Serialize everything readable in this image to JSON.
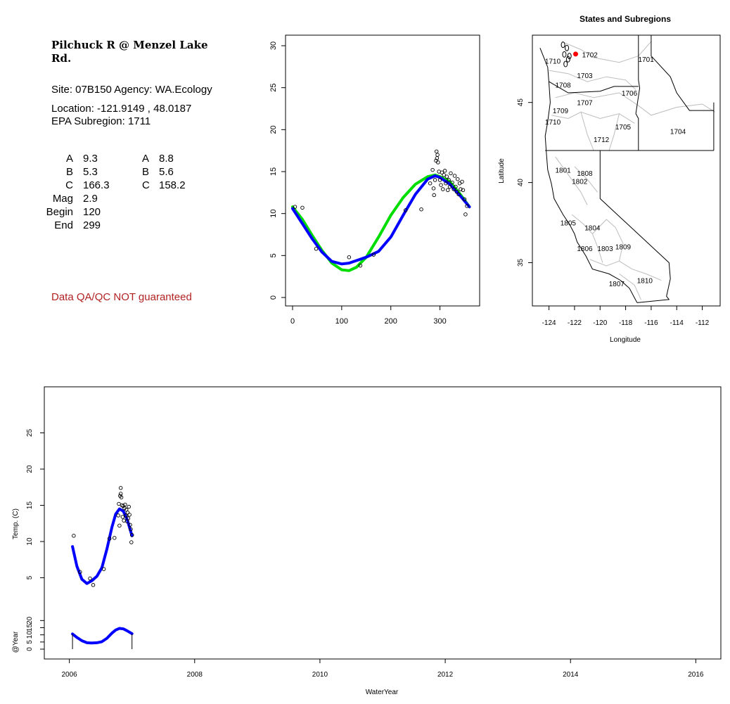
{
  "site": {
    "name": "Pilchuck R @ Menzel Lake Rd.",
    "site_line": "Site: 07B150     Agency: WA.Ecology",
    "location_line": "Location: -121.9149 , 48.0187",
    "subregion_line": "EPA Subregion: 1711",
    "qa_note": "Data QA/QC NOT guaranteed"
  },
  "params": {
    "rows": [
      {
        "label": "A",
        "v1": "9.3",
        "label2": "A",
        "v2": "8.8"
      },
      {
        "label": "B",
        "v1": "5.3",
        "label2": "B",
        "v2": "5.6"
      },
      {
        "label": "C",
        "v1": "166.3",
        "label2": "C",
        "v2": "158.2"
      },
      {
        "label": "Mag",
        "v1": "2.9",
        "label2": "",
        "v2": ""
      },
      {
        "label": "Begin",
        "v1": "120",
        "label2": "",
        "v2": ""
      },
      {
        "label": "End",
        "v1": "299",
        "label2": "",
        "v2": ""
      }
    ]
  },
  "colors": {
    "fit_a": "#0000ff",
    "fit_b": "#00dd00",
    "marker": "#ff0000",
    "qa": "#b22222"
  },
  "chart_data": [
    {
      "type": "scatter",
      "title": "",
      "xlabel": "",
      "ylabel": "",
      "xlim": [
        0,
        365
      ],
      "ylim": [
        0,
        30
      ],
      "xticks": [
        0,
        100,
        200,
        300
      ],
      "yticks": [
        0,
        5,
        10,
        15,
        20,
        25,
        30
      ],
      "points": [
        [
          5,
          10.8
        ],
        [
          20,
          10.7
        ],
        [
          48,
          5.8
        ],
        [
          115,
          4.8
        ],
        [
          138,
          3.8
        ],
        [
          165,
          5.1
        ],
        [
          230,
          10.4
        ],
        [
          262,
          10.5
        ],
        [
          280,
          13.6
        ],
        [
          285,
          15.2
        ],
        [
          287,
          13
        ],
        [
          288,
          12.2
        ],
        [
          290,
          14
        ],
        [
          292,
          16.3
        ],
        [
          293,
          17.4
        ],
        [
          294,
          16.6
        ],
        [
          295,
          17
        ],
        [
          296,
          16.1
        ],
        [
          298,
          15
        ],
        [
          300,
          14
        ],
        [
          302,
          13.4
        ],
        [
          304,
          14.9
        ],
        [
          306,
          12.9
        ],
        [
          308,
          14.6
        ],
        [
          310,
          15.1
        ],
        [
          312,
          13.6
        ],
        [
          314,
          14.4
        ],
        [
          316,
          12.8
        ],
        [
          318,
          14
        ],
        [
          320,
          13.2
        ],
        [
          322,
          14.8
        ],
        [
          325,
          13.7
        ],
        [
          328,
          12.9
        ],
        [
          330,
          14.5
        ],
        [
          332,
          13.2
        ],
        [
          334,
          12.6
        ],
        [
          336,
          14.1
        ],
        [
          338,
          12.3
        ],
        [
          340,
          13.6
        ],
        [
          342,
          12.9
        ],
        [
          345,
          13.8
        ],
        [
          347,
          12.8
        ],
        [
          350,
          11.7
        ],
        [
          352,
          9.9
        ],
        [
          355,
          10.9
        ]
      ],
      "series": [
        {
          "name": "",
          "color": "#00dd00",
          "x": [
            0,
            20,
            40,
            60,
            80,
            100,
            115,
            130,
            150,
            175,
            200,
            225,
            250,
            275,
            290,
            300,
            320,
            340,
            360
          ],
          "y": [
            10.8,
            9.3,
            7.4,
            5.6,
            4.1,
            3.3,
            3.2,
            3.6,
            4.8,
            7.2,
            9.8,
            11.9,
            13.5,
            14.4,
            14.6,
            14.4,
            13.8,
            12.4,
            10.8
          ]
        },
        {
          "name": "",
          "color": "#0000ff",
          "x": [
            0,
            20,
            40,
            60,
            80,
            100,
            115,
            130,
            150,
            175,
            200,
            225,
            250,
            275,
            290,
            300,
            320,
            340,
            360
          ],
          "y": [
            10.6,
            8.8,
            7,
            5.4,
            4.3,
            4,
            4.1,
            4.4,
            4.8,
            5.5,
            7.2,
            9.8,
            12.3,
            14.1,
            14.5,
            14.3,
            13.5,
            12.2,
            10.8
          ]
        }
      ]
    },
    {
      "type": "map",
      "title": "States and Subregions",
      "xlabel": "Longitude",
      "ylabel": "Latitude",
      "xlim": [
        -125.3,
        -110.6
      ],
      "ylim": [
        32.3,
        49.2
      ],
      "xticks": [
        -124,
        -122,
        -120,
        -118,
        -116,
        -114,
        -112
      ],
      "yticks": [
        35,
        40,
        45
      ],
      "regions": [
        {
          "label": "1702",
          "lon": -120.8,
          "lat": 48.0
        },
        {
          "label": "1701",
          "lon": -116.4,
          "lat": 47.7
        },
        {
          "label": "1710",
          "lon": -123.7,
          "lat": 47.6
        },
        {
          "label": "1703",
          "lon": -121.2,
          "lat": 46.7
        },
        {
          "label": "1708",
          "lon": -122.9,
          "lat": 46.1
        },
        {
          "label": "1706",
          "lon": -117.7,
          "lat": 45.6
        },
        {
          "label": "1707",
          "lon": -121.2,
          "lat": 45.0
        },
        {
          "label": "1709",
          "lon": -123.1,
          "lat": 44.5
        },
        {
          "label": "1710",
          "lon": -123.7,
          "lat": 43.8
        },
        {
          "label": "1705",
          "lon": -118.2,
          "lat": 43.5
        },
        {
          "label": "1704",
          "lon": -113.9,
          "lat": 43.2
        },
        {
          "label": "1712",
          "lon": -119.9,
          "lat": 42.7
        },
        {
          "label": "1801",
          "lon": -122.9,
          "lat": 40.8
        },
        {
          "label": "1808",
          "lon": -121.2,
          "lat": 40.6
        },
        {
          "label": "1802",
          "lon": -121.6,
          "lat": 40.1
        },
        {
          "label": "1805",
          "lon": -122.5,
          "lat": 37.5
        },
        {
          "label": "1804",
          "lon": -120.6,
          "lat": 37.2
        },
        {
          "label": "1806",
          "lon": -121.2,
          "lat": 35.9
        },
        {
          "label": "1803",
          "lon": -119.6,
          "lat": 35.9
        },
        {
          "label": "1809",
          "lon": -118.2,
          "lat": 36.0
        },
        {
          "label": "1810",
          "lon": -116.5,
          "lat": 33.9
        },
        {
          "label": "1807",
          "lon": -118.7,
          "lat": 33.7
        }
      ],
      "marker": {
        "lon": -121.9149,
        "lat": 48.0187
      }
    },
    {
      "type": "scatter",
      "title": "",
      "xlabel": "WaterYear",
      "ylabel": "Temp. (C)",
      "ylabel2": "@Year",
      "xlim": [
        2005.6,
        2016.4
      ],
      "ylim": [
        0,
        30
      ],
      "xticks": [
        2006,
        2008,
        2010,
        2012,
        2014,
        2016
      ],
      "yticks": [
        5,
        10,
        15,
        20,
        25
      ],
      "yticks2": [
        0,
        5,
        10,
        15,
        20
      ],
      "points": [
        [
          2006.07,
          10.8
        ],
        [
          2006.17,
          5.8
        ],
        [
          2006.33,
          4.9
        ],
        [
          2006.38,
          4.0
        ],
        [
          2006.55,
          6.2
        ],
        [
          2006.64,
          10.4
        ],
        [
          2006.72,
          10.5
        ],
        [
          2006.78,
          13.6
        ],
        [
          2006.79,
          15.2
        ],
        [
          2006.8,
          12.2
        ],
        [
          2006.81,
          16.3
        ],
        [
          2006.82,
          17.4
        ],
        [
          2006.82,
          16.6
        ],
        [
          2006.83,
          16.1
        ],
        [
          2006.84,
          15
        ],
        [
          2006.85,
          13.4
        ],
        [
          2006.86,
          14.9
        ],
        [
          2006.87,
          12.9
        ],
        [
          2006.88,
          14.6
        ],
        [
          2006.89,
          15.1
        ],
        [
          2006.9,
          13.6
        ],
        [
          2006.91,
          14.4
        ],
        [
          2006.92,
          12.8
        ],
        [
          2006.93,
          14
        ],
        [
          2006.94,
          13.2
        ],
        [
          2006.95,
          14.8
        ],
        [
          2006.96,
          13.7
        ],
        [
          2006.97,
          12.3
        ],
        [
          2006.98,
          11.7
        ],
        [
          2006.99,
          9.9
        ],
        [
          2007.0,
          10.9
        ]
      ],
      "series": [
        {
          "name": "",
          "color": "#0000ff",
          "x": [
            2006.05,
            2006.12,
            2006.2,
            2006.28,
            2006.36,
            2006.44,
            2006.52,
            2006.6,
            2006.68,
            2006.74,
            2006.8,
            2006.86,
            2006.92,
            2007.0
          ],
          "y": [
            9.3,
            6.6,
            4.8,
            4.2,
            4.6,
            5.2,
            6.4,
            9,
            12,
            13.8,
            14.5,
            14.2,
            13.1,
            10.8
          ]
        },
        {
          "name": "",
          "color": "#0000ff",
          "x": [
            2006.05,
            2006.12,
            2006.2,
            2006.28,
            2006.36,
            2006.44,
            2006.52,
            2006.6,
            2006.68,
            2006.74,
            2006.8,
            2006.86,
            2006.92,
            2007.0
          ],
          "y": [
            10.6,
            8.2,
            5.9,
            4.5,
            4.3,
            4.5,
            5.2,
            7.6,
            11.2,
            13.4,
            14.5,
            14.2,
            12.9,
            10.8
          ]
        }
      ]
    }
  ]
}
